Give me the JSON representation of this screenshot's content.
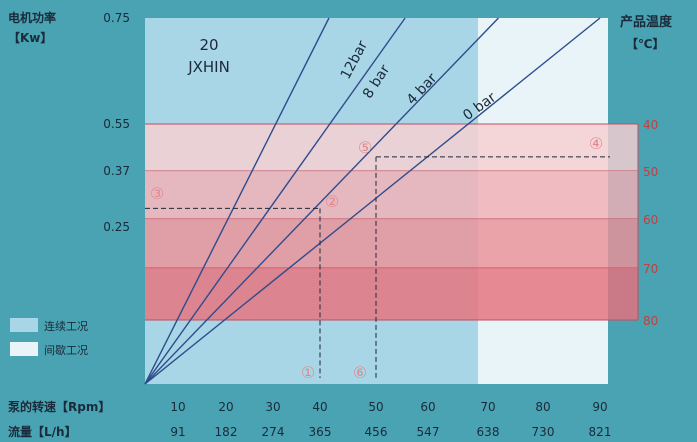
{
  "chart_data": {
    "type": "line",
    "title": "20",
    "subtitle": "JXHIN",
    "left_axis": {
      "label_line1": "电机功率",
      "label_line2": "【Kw】",
      "ticks": [
        "0.75",
        "0.55",
        "0.37",
        "0.25"
      ],
      "tick_values": [
        0.75,
        0.55,
        0.37,
        0.25
      ]
    },
    "right_axis": {
      "label_line1": "产品温度",
      "label_line2": "【℃】",
      "ticks": [
        "40",
        "50",
        "60",
        "70",
        "80"
      ],
      "tick_values": [
        40,
        50,
        60,
        70,
        80
      ]
    },
    "x_axis_rpm": {
      "label": "泵的转速【Rpm】",
      "ticks": [
        "10",
        "20",
        "30",
        "40",
        "50",
        "60",
        "70",
        "80",
        "90"
      ],
      "tick_values": [
        10,
        20,
        30,
        40,
        50,
        60,
        70,
        80,
        90
      ]
    },
    "x_axis_flow": {
      "label": "流量【L/h】",
      "ticks": [
        "91",
        "182",
        "274",
        "365",
        "456",
        "547",
        "638",
        "730",
        "821"
      ]
    },
    "series": [
      {
        "name": "12bar",
        "x": [
          0,
          41.6
        ],
        "y": [
          0,
          0.75
        ]
      },
      {
        "name": "8 bar",
        "x": [
          0,
          55.6
        ],
        "y": [
          0,
          0.75
        ]
      },
      {
        "name": "4 bar",
        "x": [
          0,
          71.9
        ],
        "y": [
          0,
          0.75
        ]
      },
      {
        "name": "0 bar",
        "x": [
          0,
          90
        ],
        "y": [
          0,
          0.75
        ]
      }
    ],
    "temperature_bands": [
      {
        "from": 40,
        "to": 50,
        "color": "#f6cfd2"
      },
      {
        "from": 50,
        "to": 60,
        "color": "#f1b0b6"
      },
      {
        "from": 60,
        "to": 70,
        "color": "#ec9198"
      },
      {
        "from": 70,
        "to": 80,
        "color": "#e6727c"
      }
    ],
    "legend": [
      {
        "label": "连续工况",
        "color": "#a9d6e6"
      },
      {
        "label": "间歇工况",
        "color": "#e8f4f8"
      }
    ],
    "regions": {
      "continuous_rpm": [
        0,
        70
      ],
      "intermittent_rpm": [
        70,
        90
      ]
    },
    "example_markers": [
      {
        "label": "①",
        "rpm": 40
      },
      {
        "label": "②",
        "rpm": 40,
        "kw": 0.29
      },
      {
        "label": "③",
        "kw": 0.29
      },
      {
        "label": "④",
        "temp": 47
      },
      {
        "label": "⑤",
        "rpm": 50,
        "temp": 47
      },
      {
        "label": "⑥",
        "rpm": 50
      }
    ],
    "xlim": [
      0,
      90
    ],
    "ylim": [
      0,
      0.75
    ],
    "temp_lim": [
      40,
      80
    ],
    "colors": {
      "background": "#4aa3b2",
      "continuous": "#a9d6e6",
      "intermittent": "#e8f4f8",
      "line": "#2f4c8c",
      "band_line": "#c04f5e",
      "marker": "#e08a90",
      "temp_tick": "#c04040"
    }
  }
}
